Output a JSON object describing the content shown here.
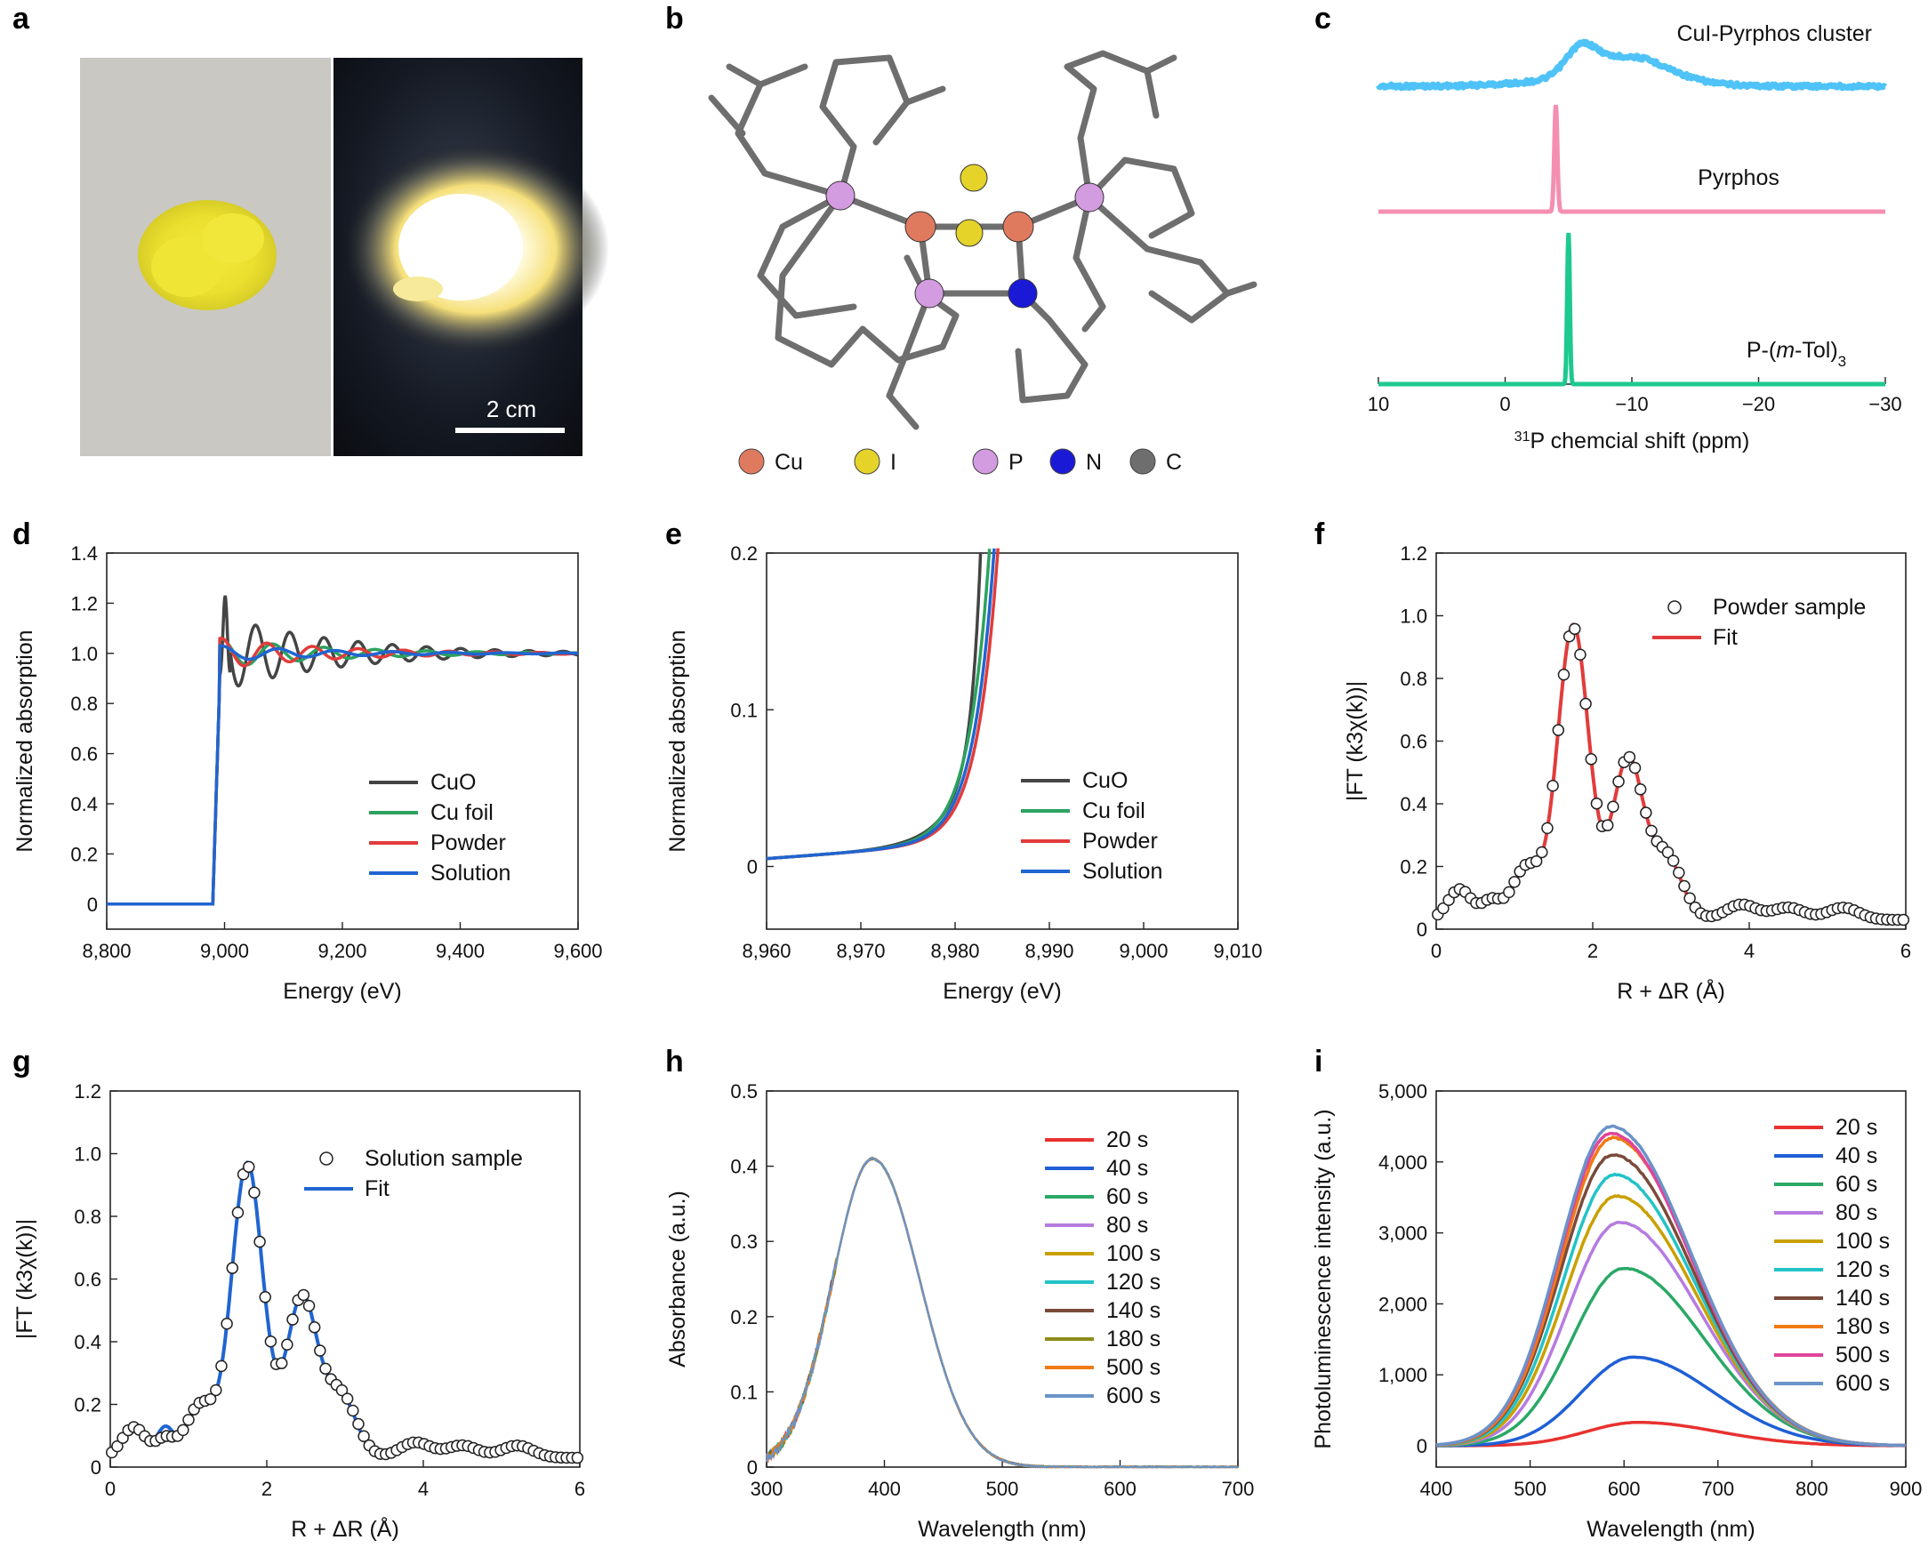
{
  "panel_a": {
    "label": "a",
    "scale_bar": "2 cm"
  },
  "panel_b": {
    "label": "b",
    "legend": [
      {
        "symbol": "Cu",
        "color": "#e07a5f"
      },
      {
        "symbol": "I",
        "color": "#e5d32a"
      },
      {
        "symbol": "P",
        "color": "#d39be0"
      },
      {
        "symbol": "N",
        "color": "#1a1ad6"
      },
      {
        "symbol": "C",
        "color": "#6e6e6e"
      }
    ]
  },
  "chart_data": [
    {
      "id": "c",
      "label": "c",
      "type": "line",
      "xlabel_sup": "31",
      "xlabel": "P chemcial shift (ppm)",
      "xlim": [
        10,
        -30
      ],
      "xticks": [
        "10",
        "0",
        "−10",
        "−20",
        "−30"
      ],
      "series": [
        {
          "name": "CuI-Pyrphos cluster",
          "color": "#4fc3f7",
          "peaks": [
            [
              -6,
              0.9
            ],
            [
              -10,
              0.75
            ]
          ]
        },
        {
          "name": "Pyrphos",
          "color": "#f48fb1",
          "peaks": [
            [
              -4,
              1.0
            ]
          ]
        },
        {
          "name": "P-(m-Tol)3",
          "name_main": "P-(",
          "name_it": "m",
          "name_rest": "-Tol)",
          "name_sub": "3",
          "color": "#1dc98e",
          "peaks": [
            [
              -5,
              1.0
            ]
          ]
        }
      ]
    },
    {
      "id": "d",
      "label": "d",
      "type": "line",
      "xlabel": "Energy (eV)",
      "ylabel": "Normalized absorption",
      "xlim": [
        8800,
        9600
      ],
      "ylim": [
        -0.1,
        1.4
      ],
      "xticks": [
        "8,800",
        "9,000",
        "9,200",
        "9,400",
        "9,600"
      ],
      "yticks": [
        "0",
        "0.2",
        "0.4",
        "0.6",
        "0.8",
        "1.0",
        "1.2",
        "1.4"
      ],
      "series": [
        {
          "name": "CuO",
          "color": "#444444",
          "edge": 8990,
          "wl": 1.23
        },
        {
          "name": "Cu foil",
          "color": "#2ca25f",
          "edge": 8982,
          "wl": 0.95
        },
        {
          "name": "Powder",
          "color": "#e23b3b",
          "edge": 8985,
          "wl": 1.0
        },
        {
          "name": "Solution",
          "color": "#2065d1",
          "edge": 8983,
          "wl": 0.98
        }
      ]
    },
    {
      "id": "e",
      "label": "e",
      "type": "line",
      "xlabel": "Energy (eV)",
      "ylabel": "Normalized absorption",
      "xlim": [
        8960,
        9010
      ],
      "ylim": [
        -0.04,
        0.2
      ],
      "xticks": [
        "8,960",
        "8,970",
        "8,980",
        "8,990",
        "9,000",
        "9,010"
      ],
      "yticks": [
        "0",
        "0.1",
        "0.2"
      ],
      "series": [
        {
          "name": "CuO",
          "color": "#444444",
          "edge": 8982.5
        },
        {
          "name": "Cu foil",
          "color": "#2ca25f",
          "edge": 8978.8
        },
        {
          "name": "Powder",
          "color": "#e23b3b",
          "edge": 8979.8
        },
        {
          "name": "Solution",
          "color": "#2065d1",
          "edge": 8979.3
        }
      ]
    },
    {
      "id": "f",
      "label": "f",
      "type": "line",
      "xlabel": "R + ΔR (Å)",
      "ylabel": "|FT (k3χ(k))|",
      "xlim": [
        0,
        6
      ],
      "ylim": [
        0,
        1.2
      ],
      "xticks": [
        "0",
        "2",
        "4",
        "6"
      ],
      "yticks": [
        "0",
        "0.2",
        "0.4",
        "0.6",
        "0.8",
        "1.0",
        "1.2"
      ],
      "series": [
        {
          "name": "Powder sample",
          "color": "#222222",
          "style": "circles"
        },
        {
          "name": "Fit",
          "color": "#e23b3b",
          "style": "line"
        }
      ]
    },
    {
      "id": "g",
      "label": "g",
      "type": "line",
      "xlabel": "R + ΔR (Å)",
      "ylabel": "|FT (k3χ(k))|",
      "xlim": [
        0,
        6
      ],
      "ylim": [
        0,
        1.2
      ],
      "xticks": [
        "0",
        "2",
        "4",
        "6"
      ],
      "yticks": [
        "0",
        "0.2",
        "0.4",
        "0.6",
        "0.8",
        "1.0",
        "1.2"
      ],
      "series": [
        {
          "name": "Solution sample",
          "color": "#222222",
          "style": "circles"
        },
        {
          "name": "Fit",
          "color": "#2065d1",
          "style": "line"
        }
      ]
    },
    {
      "id": "h",
      "label": "h",
      "type": "line",
      "xlabel": "Wavelength (nm)",
      "ylabel": "Absorbance (a.u.)",
      "xlim": [
        300,
        700
      ],
      "ylim": [
        0,
        0.5
      ],
      "xticks": [
        "300",
        "400",
        "500",
        "600",
        "700"
      ],
      "yticks": [
        "0",
        "0.1",
        "0.2",
        "0.3",
        "0.4",
        "0.5"
      ],
      "peak_nm": 390,
      "peak_abs": 0.41,
      "series": [
        {
          "name": "20 s",
          "color": "#e8312f"
        },
        {
          "name": "40 s",
          "color": "#1f5fd6"
        },
        {
          "name": "60 s",
          "color": "#2aa866"
        },
        {
          "name": "80 s",
          "color": "#b57be0"
        },
        {
          "name": "100 s",
          "color": "#c9a000"
        },
        {
          "name": "120 s",
          "color": "#22c3c8"
        },
        {
          "name": "140 s",
          "color": "#7a4a3a"
        },
        {
          "name": "180 s",
          "color": "#8c8c1a"
        },
        {
          "name": "500 s",
          "color": "#f07a14"
        },
        {
          "name": "600 s",
          "color": "#6b93c8"
        }
      ]
    },
    {
      "id": "i",
      "label": "i",
      "type": "line",
      "xlabel": "Wavelength (nm)",
      "ylabel": "Photoluminescence intensity (a.u.)",
      "xlim": [
        400,
        900
      ],
      "ylim": [
        -300,
        5000
      ],
      "xticks": [
        "400",
        "500",
        "600",
        "700",
        "800",
        "900"
      ],
      "yticks": [
        "0",
        "1,000",
        "2,000",
        "3,000",
        "4,000",
        "5,000"
      ],
      "series": [
        {
          "name": "20 s",
          "color": "#e8312f",
          "peak": 330,
          "center": 615
        },
        {
          "name": "40 s",
          "color": "#1f5fd6",
          "peak": 1250,
          "center": 610
        },
        {
          "name": "60 s",
          "color": "#2aa866",
          "peak": 2500,
          "center": 600
        },
        {
          "name": "80 s",
          "color": "#b57be0",
          "peak": 3150,
          "center": 595
        },
        {
          "name": "100 s",
          "color": "#c9a000",
          "peak": 3520,
          "center": 592
        },
        {
          "name": "120 s",
          "color": "#22c3c8",
          "peak": 3820,
          "center": 590
        },
        {
          "name": "140 s",
          "color": "#7a4a3a",
          "peak": 4100,
          "center": 588
        },
        {
          "name": "180 s",
          "color": "#f07a14",
          "peak": 4340,
          "center": 588
        },
        {
          "name": "500 s",
          "color": "#e0449a",
          "peak": 4400,
          "center": 586
        },
        {
          "name": "600 s",
          "color": "#6b93c8",
          "peak": 4500,
          "center": 586
        }
      ]
    }
  ]
}
